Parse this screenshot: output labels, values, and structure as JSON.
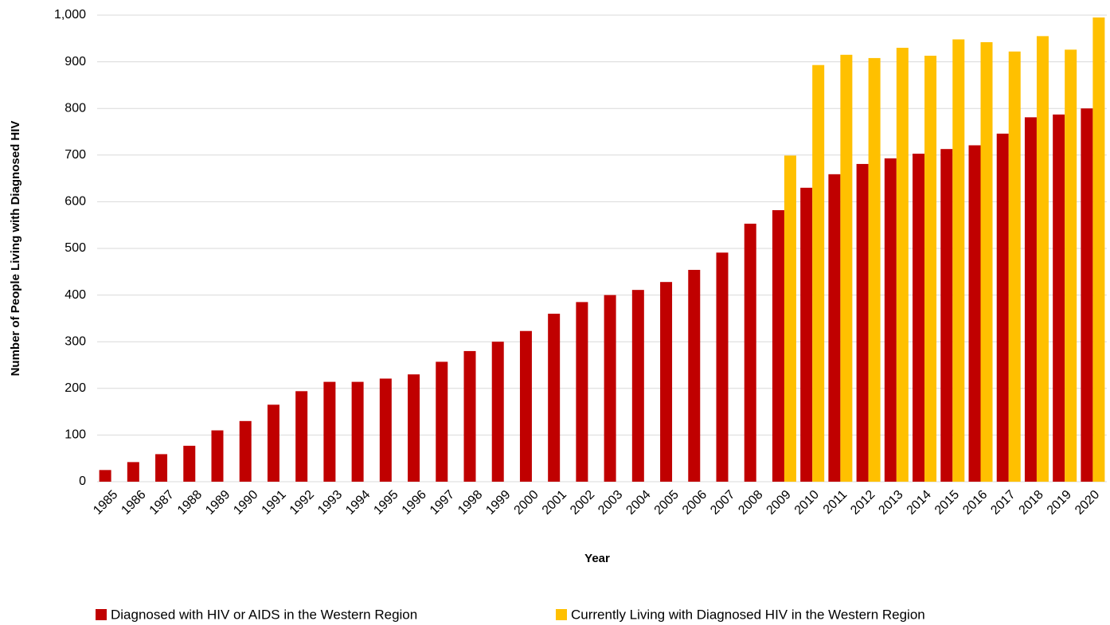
{
  "chart_data": {
    "type": "bar",
    "x_label": "Year",
    "y_label": "Number of People Living with Diagnosed HIV",
    "categories": [
      "1985",
      "1986",
      "1987",
      "1988",
      "1989",
      "1990",
      "1991",
      "1992",
      "1993",
      "1994",
      "1995",
      "1996",
      "1997",
      "1998",
      "1999",
      "2000",
      "2001",
      "2002",
      "2003",
      "2004",
      "2005",
      "2006",
      "2007",
      "2008",
      "2009",
      "2010",
      "2011",
      "2012",
      "2013",
      "2014",
      "2015",
      "2016",
      "2017",
      "2018",
      "2019",
      "2020"
    ],
    "series": [
      {
        "name": "Diagnosed with HIV or AIDS in the Western Region",
        "color": "#c00000",
        "values": [
          25,
          42,
          59,
          77,
          110,
          130,
          165,
          194,
          214,
          214,
          221,
          230,
          257,
          280,
          300,
          323,
          360,
          385,
          400,
          411,
          428,
          454,
          491,
          553,
          582,
          630,
          659,
          681,
          693,
          703,
          713,
          721,
          746,
          781,
          787,
          800
        ]
      },
      {
        "name": "Currently Living with Diagnosed HIV in the Western Region",
        "color": "#ffc000",
        "values": [
          null,
          null,
          null,
          null,
          null,
          null,
          null,
          null,
          null,
          null,
          null,
          null,
          null,
          null,
          null,
          null,
          null,
          null,
          null,
          null,
          null,
          null,
          null,
          null,
          699,
          893,
          915,
          908,
          930,
          913,
          948,
          942,
          922,
          955,
          926,
          995
        ]
      }
    ],
    "ylim": [
      0,
      1000
    ],
    "yticks": [
      0,
      100,
      200,
      300,
      400,
      500,
      600,
      700,
      800,
      900,
      {
        "value": 1000,
        "label": "1,000"
      }
    ],
    "grid": true,
    "legend": "bottom"
  }
}
